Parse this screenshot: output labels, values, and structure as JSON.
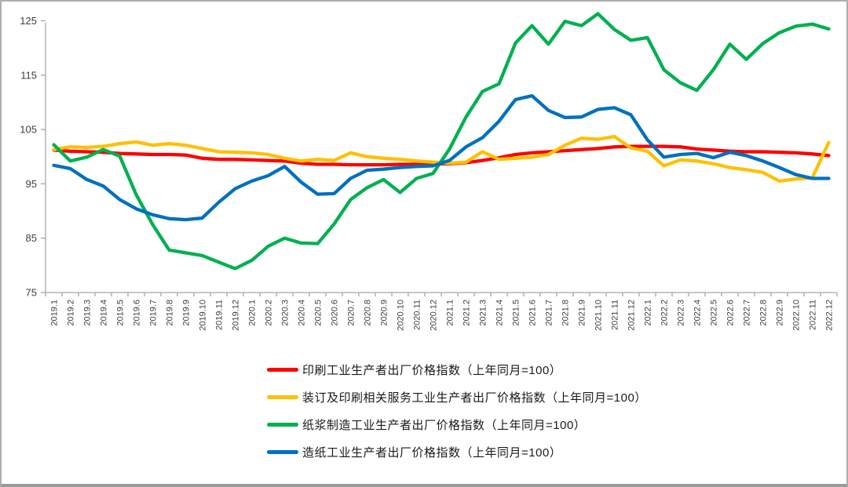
{
  "frame": {
    "background": "#ffffff",
    "border_color": "#aeaeae"
  },
  "axes_style": {
    "axis_color": "#a6a6a6",
    "label_color": "#3f3f3f"
  },
  "chart_data": {
    "type": "line",
    "title": "",
    "xlabel": "",
    "ylabel": "",
    "ylim": [
      75,
      125
    ],
    "y_ticks": [
      75,
      85,
      95,
      105,
      115,
      125
    ],
    "grid": false,
    "legend_position": "bottom-left",
    "categories": [
      "2019.1",
      "2019.2",
      "2019.3",
      "2019.4",
      "2019.5",
      "2019.6",
      "2019.7",
      "2019.8",
      "2019.9",
      "2019.10",
      "2019.11",
      "2019.12",
      "2020.1",
      "2020.2",
      "2020.3",
      "2020.4",
      "2020.5",
      "2020.6",
      "2020.7",
      "2020.8",
      "2020.9",
      "2020.10",
      "2020.11",
      "2020.12",
      "2021.1",
      "2021.2",
      "2021.3",
      "2021.4",
      "2021.5",
      "2021.6",
      "2021.7",
      "2021.8",
      "2021.9",
      "2021.10",
      "2021.11",
      "2021.12",
      "2022.1",
      "2022.2",
      "2022.3",
      "2022.4",
      "2022.5",
      "2022.6",
      "2022.7",
      "2022.8",
      "2022.9",
      "2022.10",
      "2022.11",
      "2022.12"
    ],
    "series": [
      {
        "name": "印刷工业生产者出厂价格指数（上年同月=100）",
        "color": "#ff0000",
        "values": [
          101.2,
          101.0,
          100.9,
          100.8,
          100.6,
          100.5,
          100.4,
          100.4,
          100.3,
          99.7,
          99.5,
          99.5,
          99.4,
          99.3,
          99.2,
          98.8,
          98.6,
          98.6,
          98.5,
          98.5,
          98.5,
          98.6,
          98.6,
          98.7,
          98.7,
          98.9,
          99.3,
          99.8,
          100.4,
          100.7,
          100.9,
          101.1,
          101.3,
          101.5,
          101.8,
          101.9,
          101.9,
          101.9,
          101.8,
          101.4,
          101.2,
          101.0,
          100.9,
          100.9,
          100.8,
          100.7,
          100.5,
          100.2
        ]
      },
      {
        "name": "装订及印刷相关服务工业生产者出厂价格指数（上年同月=100）",
        "color": "#ffc000",
        "values": [
          101.3,
          101.8,
          101.7,
          101.9,
          102.4,
          102.7,
          102.1,
          102.4,
          102.1,
          101.5,
          100.9,
          100.8,
          100.7,
          100.4,
          99.7,
          99.2,
          99.5,
          99.3,
          100.7,
          100.0,
          99.7,
          99.5,
          99.2,
          99.0,
          98.8,
          99.0,
          100.9,
          99.5,
          99.7,
          99.9,
          100.4,
          102.1,
          103.4,
          103.2,
          103.7,
          101.6,
          101.0,
          98.3,
          99.4,
          99.2,
          98.7,
          98.0,
          97.6,
          97.1,
          95.5,
          95.9,
          96.1,
          102.6
        ]
      },
      {
        "name": "纸浆制造工业生产者出厂价格指数（上年同月=100）",
        "color": "#00b050",
        "values": [
          102.2,
          99.2,
          99.9,
          101.3,
          100.1,
          93.0,
          87.5,
          82.8,
          82.3,
          81.8,
          80.6,
          79.4,
          80.9,
          83.5,
          85.0,
          84.1,
          84.0,
          87.6,
          92.1,
          94.3,
          95.8,
          93.4,
          96.0,
          96.9,
          101.4,
          107.3,
          112.0,
          113.4,
          120.9,
          124.1,
          120.7,
          124.9,
          124.1,
          126.3,
          123.4,
          121.4,
          121.9,
          116.0,
          113.6,
          112.2,
          116.0,
          120.7,
          117.9,
          120.8,
          122.8,
          124.0,
          124.4,
          123.5
        ]
      },
      {
        "name": "造纸工业生产者出厂价格指数（上年同月=100）",
        "color": "#0070c0",
        "values": [
          98.4,
          97.8,
          95.8,
          94.6,
          92.1,
          90.4,
          89.3,
          88.6,
          88.4,
          88.7,
          91.6,
          94.1,
          95.5,
          96.5,
          98.2,
          95.3,
          93.1,
          93.2,
          96.0,
          97.5,
          97.7,
          98.0,
          98.2,
          98.3,
          99.3,
          101.8,
          103.5,
          106.5,
          110.5,
          111.2,
          108.5,
          107.2,
          107.3,
          108.7,
          109.0,
          107.7,
          103.1,
          99.9,
          100.4,
          100.6,
          99.8,
          100.8,
          100.2,
          99.2,
          98.0,
          96.7,
          96.0,
          96.0
        ]
      }
    ]
  }
}
